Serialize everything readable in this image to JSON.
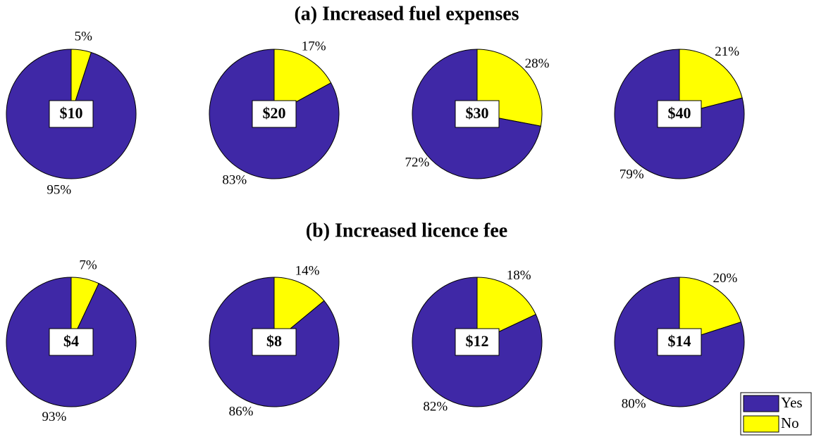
{
  "chart_data": [
    {
      "type": "pie",
      "title": "(a) Increased fuel expenses",
      "labels": [
        "$10",
        "$20",
        "$30",
        "$40"
      ],
      "series": [
        {
          "color": "#3f28a6",
          "values": [
            95,
            83,
            72,
            79
          ],
          "value_labels": [
            "95%",
            "83%",
            "72%",
            "79%"
          ]
        },
        {
          "color": "#ffff00",
          "values": [
            5,
            17,
            28,
            21
          ],
          "value_labels": [
            "5%",
            "17%",
            "28%",
            "21%"
          ]
        }
      ]
    },
    {
      "type": "pie",
      "title": "(b) Increased licence fee",
      "labels": [
        "$4",
        "$8",
        "$12",
        "$14"
      ],
      "series": [
        {
          "name": "Yes",
          "color": "#3f28a6",
          "values": [
            93,
            86,
            82,
            80
          ],
          "value_labels": [
            "93%",
            "86%",
            "82%",
            "80%"
          ]
        },
        {
          "name": "No",
          "color": "#ffff00",
          "values": [
            7,
            14,
            18,
            20
          ],
          "value_labels": [
            "7%",
            "14%",
            "18%",
            "20%"
          ]
        }
      ],
      "legend": "lower right"
    }
  ]
}
